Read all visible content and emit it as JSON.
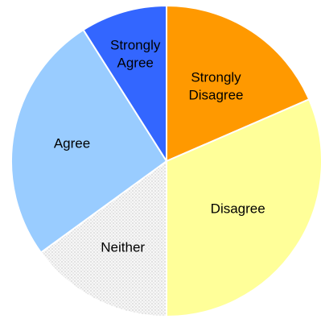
{
  "chart_data": {
    "type": "pie",
    "title": "",
    "start": "12 o'clock",
    "direction": "clockwise",
    "slices": [
      {
        "label": "Strongly Disagree",
        "value": 18.5,
        "color": "#ff9900",
        "pattern": "solid"
      },
      {
        "label": "Disagree",
        "value": 31.5,
        "color": "#ffff99",
        "pattern": "solid"
      },
      {
        "label": "Neither",
        "value": 15.0,
        "color": "#f2f2f2",
        "pattern": "dotted"
      },
      {
        "label": "Agree",
        "value": 26.0,
        "color": "#99ccff",
        "pattern": "solid"
      },
      {
        "label": "Strongly Agree",
        "value": 9.0,
        "color": "#3366ff",
        "pattern": "solid"
      }
    ]
  }
}
